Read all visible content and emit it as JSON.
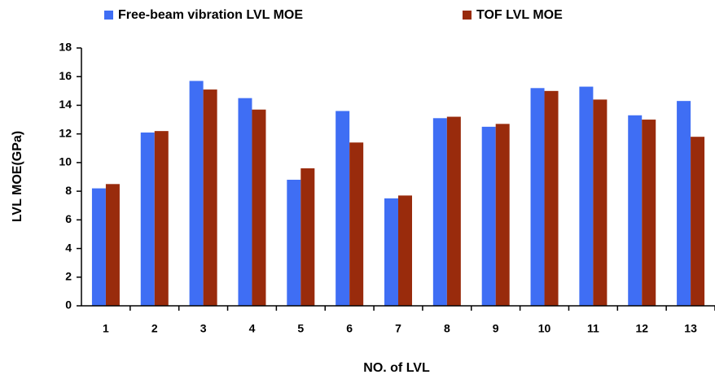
{
  "chart_data": {
    "type": "bar",
    "xlabel": "NO. of LVL",
    "ylabel": "LVL MOE(GPa)",
    "categories": [
      "1",
      "2",
      "3",
      "4",
      "5",
      "6",
      "7",
      "8",
      "9",
      "10",
      "11",
      "12",
      "13"
    ],
    "series": [
      {
        "name": "Free-beam vibration LVL MOE",
        "color": "#3f6ef4",
        "values": [
          8.2,
          12.1,
          15.7,
          14.5,
          8.8,
          13.6,
          7.5,
          13.1,
          12.5,
          15.2,
          15.3,
          13.3,
          14.3
        ]
      },
      {
        "name": "TOF LVL MOE",
        "color": "#992b0c",
        "values": [
          8.5,
          12.2,
          15.1,
          13.7,
          9.6,
          11.4,
          7.7,
          13.2,
          12.7,
          15.0,
          14.4,
          13.0,
          11.8
        ]
      }
    ],
    "ylim": [
      0,
      18
    ],
    "yticks": [
      0,
      2,
      4,
      6,
      8,
      10,
      12,
      14,
      16,
      18
    ],
    "grid": false,
    "legend": "top"
  }
}
